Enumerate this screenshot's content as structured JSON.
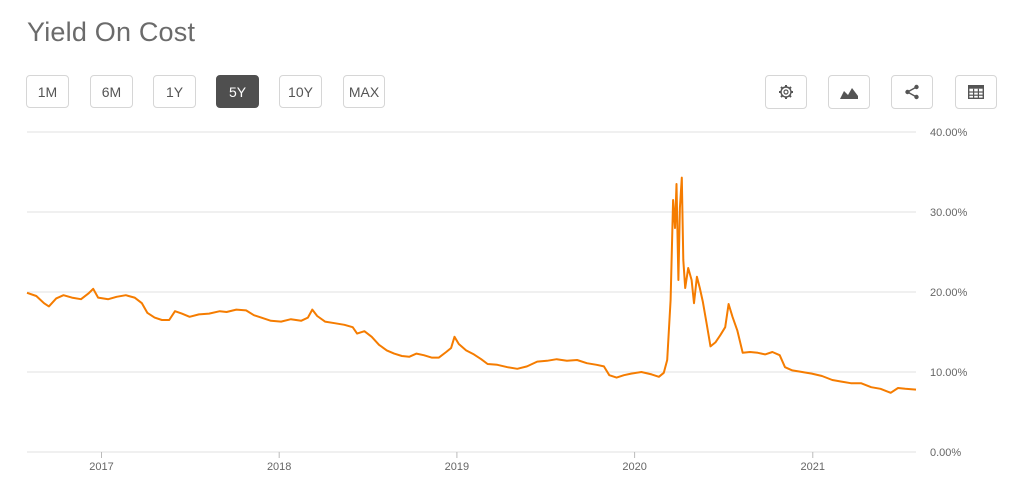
{
  "page": {
    "title": "Yield On Cost"
  },
  "range_buttons": [
    {
      "label": "1M",
      "active": false
    },
    {
      "label": "6M",
      "active": false
    },
    {
      "label": "1Y",
      "active": false
    },
    {
      "label": "5Y",
      "active": true
    },
    {
      "label": "10Y",
      "active": false
    },
    {
      "label": "MAX",
      "active": false
    }
  ],
  "tools": [
    {
      "icon": "gear-icon"
    },
    {
      "icon": "area-chart-icon"
    },
    {
      "icon": "share-icon"
    },
    {
      "icon": "table-icon"
    }
  ],
  "colors": {
    "line": "#f57c00",
    "grid": "#e2e2e2",
    "active_button": "#4f4f4f",
    "title": "#6b6b6b"
  },
  "chart_data": {
    "type": "line",
    "title": "Yield On Cost",
    "x_ticks": [
      "2017",
      "2018",
      "2019",
      "2020",
      "2021"
    ],
    "y_ticks": [
      "0.00%",
      "10.00%",
      "20.00%",
      "30.00%",
      "40.00%"
    ],
    "ylim": [
      0,
      40
    ],
    "xlim": [
      "2016-08-01",
      "2021-08-01"
    ],
    "y_axis_position": "right",
    "grid": true,
    "series": [
      {
        "points": [
          [
            "2016-08-01",
            19.9
          ],
          [
            "2016-08-20",
            19.5
          ],
          [
            "2016-09-05",
            18.6
          ],
          [
            "2016-09-15",
            18.2
          ],
          [
            "2016-09-30",
            19.2
          ],
          [
            "2016-10-15",
            19.6
          ],
          [
            "2016-11-01",
            19.3
          ],
          [
            "2016-11-20",
            19.1
          ],
          [
            "2016-12-05",
            19.8
          ],
          [
            "2016-12-15",
            20.4
          ],
          [
            "2016-12-25",
            19.3
          ],
          [
            "2017-01-15",
            19.1
          ],
          [
            "2017-02-01",
            19.4
          ],
          [
            "2017-02-20",
            19.6
          ],
          [
            "2017-03-10",
            19.3
          ],
          [
            "2017-03-25",
            18.6
          ],
          [
            "2017-04-05",
            17.4
          ],
          [
            "2017-04-20",
            16.8
          ],
          [
            "2017-05-05",
            16.5
          ],
          [
            "2017-05-20",
            16.5
          ],
          [
            "2017-06-01",
            17.6
          ],
          [
            "2017-06-15",
            17.3
          ],
          [
            "2017-07-01",
            16.9
          ],
          [
            "2017-07-20",
            17.2
          ],
          [
            "2017-08-10",
            17.3
          ],
          [
            "2017-09-01",
            17.6
          ],
          [
            "2017-09-15",
            17.5
          ],
          [
            "2017-10-05",
            17.8
          ],
          [
            "2017-10-25",
            17.7
          ],
          [
            "2017-11-10",
            17.1
          ],
          [
            "2017-11-25",
            16.8
          ],
          [
            "2017-12-15",
            16.4
          ],
          [
            "2018-01-05",
            16.3
          ],
          [
            "2018-01-25",
            16.6
          ],
          [
            "2018-02-15",
            16.4
          ],
          [
            "2018-03-01",
            16.8
          ],
          [
            "2018-03-10",
            17.8
          ],
          [
            "2018-03-20",
            17.0
          ],
          [
            "2018-04-05",
            16.3
          ],
          [
            "2018-04-25",
            16.1
          ],
          [
            "2018-05-15",
            15.9
          ],
          [
            "2018-06-01",
            15.6
          ],
          [
            "2018-06-10",
            14.8
          ],
          [
            "2018-06-25",
            15.1
          ],
          [
            "2018-07-10",
            14.4
          ],
          [
            "2018-07-25",
            13.4
          ],
          [
            "2018-08-10",
            12.7
          ],
          [
            "2018-08-25",
            12.3
          ],
          [
            "2018-09-10",
            12.0
          ],
          [
            "2018-09-25",
            11.9
          ],
          [
            "2018-10-10",
            12.3
          ],
          [
            "2018-10-25",
            12.1
          ],
          [
            "2018-11-10",
            11.8
          ],
          [
            "2018-11-25",
            11.8
          ],
          [
            "2018-12-10",
            12.5
          ],
          [
            "2018-12-20",
            13.0
          ],
          [
            "2018-12-27",
            14.4
          ],
          [
            "2019-01-05",
            13.5
          ],
          [
            "2019-01-20",
            12.7
          ],
          [
            "2019-02-05",
            12.2
          ],
          [
            "2019-02-20",
            11.6
          ],
          [
            "2019-03-05",
            11.0
          ],
          [
            "2019-03-25",
            10.9
          ],
          [
            "2019-04-15",
            10.6
          ],
          [
            "2019-05-05",
            10.4
          ],
          [
            "2019-05-25",
            10.7
          ],
          [
            "2019-06-15",
            11.3
          ],
          [
            "2019-07-05",
            11.4
          ],
          [
            "2019-07-25",
            11.6
          ],
          [
            "2019-08-15",
            11.4
          ],
          [
            "2019-09-05",
            11.5
          ],
          [
            "2019-09-25",
            11.1
          ],
          [
            "2019-10-15",
            10.9
          ],
          [
            "2019-10-30",
            10.7
          ],
          [
            "2019-11-10",
            9.6
          ],
          [
            "2019-11-25",
            9.3
          ],
          [
            "2019-12-10",
            9.6
          ],
          [
            "2019-12-25",
            9.8
          ],
          [
            "2020-01-15",
            10.0
          ],
          [
            "2020-02-05",
            9.7
          ],
          [
            "2020-02-20",
            9.4
          ],
          [
            "2020-03-01",
            9.9
          ],
          [
            "2020-03-08",
            11.5
          ],
          [
            "2020-03-15",
            19.0
          ],
          [
            "2020-03-20",
            31.5
          ],
          [
            "2020-03-24",
            28.0
          ],
          [
            "2020-03-27",
            33.5
          ],
          [
            "2020-03-31",
            21.5
          ],
          [
            "2020-04-03",
            30.5
          ],
          [
            "2020-04-07",
            34.3
          ],
          [
            "2020-04-10",
            24.0
          ],
          [
            "2020-04-14",
            20.5
          ],
          [
            "2020-04-20",
            23.0
          ],
          [
            "2020-04-27",
            21.5
          ],
          [
            "2020-05-02",
            18.6
          ],
          [
            "2020-05-08",
            21.9
          ],
          [
            "2020-05-14",
            20.5
          ],
          [
            "2020-05-20",
            18.8
          ],
          [
            "2020-05-28",
            16.0
          ],
          [
            "2020-06-05",
            13.2
          ],
          [
            "2020-06-15",
            13.7
          ],
          [
            "2020-06-25",
            14.6
          ],
          [
            "2020-07-05",
            15.6
          ],
          [
            "2020-07-12",
            18.5
          ],
          [
            "2020-07-20",
            16.9
          ],
          [
            "2020-07-30",
            15.2
          ],
          [
            "2020-08-10",
            12.4
          ],
          [
            "2020-08-25",
            12.5
          ],
          [
            "2020-09-10",
            12.4
          ],
          [
            "2020-09-25",
            12.2
          ],
          [
            "2020-10-10",
            12.5
          ],
          [
            "2020-10-25",
            12.1
          ],
          [
            "2020-11-05",
            10.6
          ],
          [
            "2020-11-20",
            10.2
          ],
          [
            "2020-12-10",
            10.0
          ],
          [
            "2020-12-30",
            9.8
          ],
          [
            "2021-01-20",
            9.5
          ],
          [
            "2021-02-10",
            9.0
          ],
          [
            "2021-03-01",
            8.8
          ],
          [
            "2021-03-20",
            8.6
          ],
          [
            "2021-04-10",
            8.6
          ],
          [
            "2021-05-01",
            8.1
          ],
          [
            "2021-05-20",
            7.9
          ],
          [
            "2021-06-10",
            7.4
          ],
          [
            "2021-06-25",
            8.0
          ],
          [
            "2021-07-10",
            7.9
          ],
          [
            "2021-08-01",
            7.8
          ]
        ]
      }
    ]
  }
}
